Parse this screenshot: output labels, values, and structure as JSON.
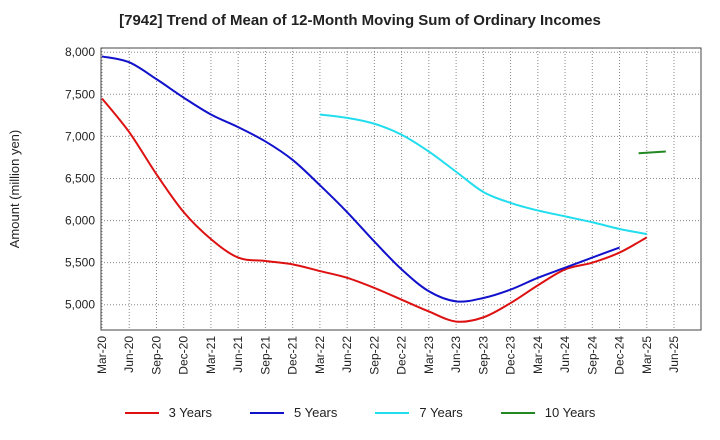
{
  "chart_data": {
    "type": "line",
    "title": "[7942]  Trend of Mean of 12-Month Moving Sum of Ordinary Incomes",
    "xlabel": "",
    "ylabel": "Amount (million yen)",
    "ylim": [
      4700,
      8050
    ],
    "yticks": [
      5000,
      5500,
      6000,
      6500,
      7000,
      7500,
      8000
    ],
    "ytick_labels": [
      "5,000",
      "5,500",
      "6,000",
      "6,500",
      "7,000",
      "7,500",
      "8,000"
    ],
    "x_tick_labels": [
      "Mar-20",
      "Jun-20",
      "Sep-20",
      "Dec-20",
      "Mar-21",
      "Jun-21",
      "Sep-21",
      "Dec-21",
      "Mar-22",
      "Jun-22",
      "Sep-22",
      "Dec-22",
      "Mar-23",
      "Jun-23",
      "Sep-23",
      "Dec-23",
      "Mar-24",
      "Jun-24",
      "Sep-24",
      "Dec-24",
      "Mar-25",
      "Jun-25"
    ],
    "grid": true,
    "legend_position": "bottom",
    "series": [
      {
        "name": "3 Years",
        "color": "#dd1111",
        "start_index": 0,
        "values": [
          7450,
          7050,
          6550,
          6100,
          5780,
          5560,
          5520,
          5480,
          5400,
          5320,
          5200,
          5060,
          4920,
          4800,
          4850,
          5020,
          5230,
          5420,
          5500,
          5620,
          5800
        ]
      },
      {
        "name": "5 Years",
        "color": "#1111cc",
        "start_index": 0,
        "values": [
          7950,
          7880,
          7680,
          7460,
          7260,
          7110,
          6940,
          6720,
          6420,
          6100,
          5750,
          5420,
          5160,
          5040,
          5080,
          5180,
          5320,
          5440,
          5560,
          5680
        ]
      },
      {
        "name": "7 Years",
        "color": "#22ddee",
        "start_index": 8,
        "values": [
          7260,
          7220,
          7150,
          7020,
          6820,
          6580,
          6340,
          6210,
          6120,
          6050,
          5980,
          5900,
          5840
        ]
      },
      {
        "name": "10 Years",
        "color": "#228822",
        "start_index": 19.7,
        "values": [
          6800,
          6820
        ]
      }
    ]
  }
}
